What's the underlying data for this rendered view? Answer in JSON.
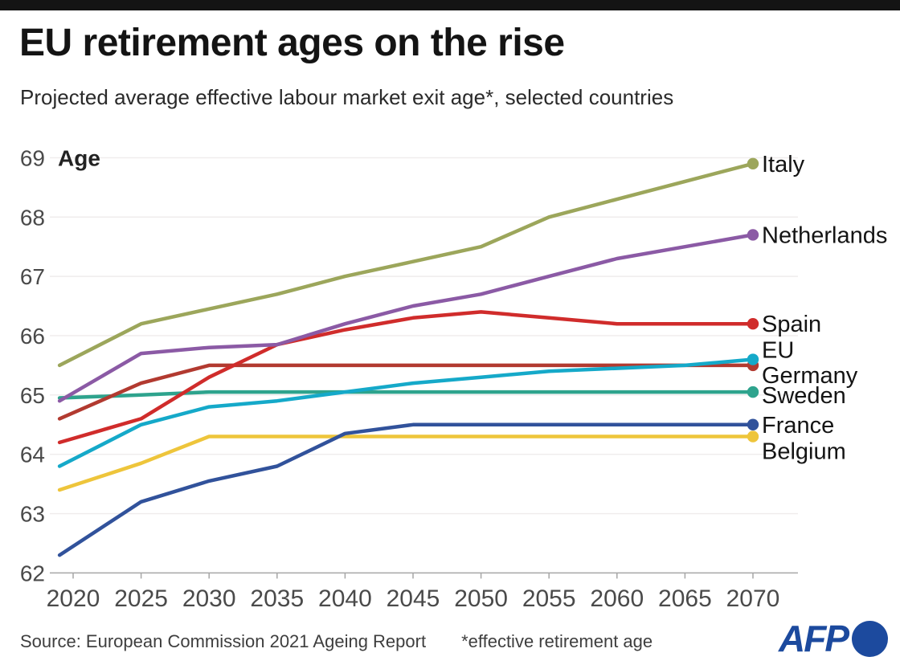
{
  "header": {
    "title": "EU retirement ages on the rise",
    "subtitle": "Projected average effective labour market exit age*, selected countries"
  },
  "chart_data": {
    "type": "line",
    "title": "EU retirement ages on the rise",
    "xlabel": "",
    "ylabel": "Age",
    "x": [
      2019,
      2025,
      2030,
      2035,
      2040,
      2045,
      2050,
      2055,
      2060,
      2065,
      2070
    ],
    "xticks": [
      2020,
      2025,
      2030,
      2035,
      2040,
      2045,
      2050,
      2055,
      2060,
      2065,
      2070
    ],
    "yticks": [
      62,
      63,
      64,
      65,
      66,
      67,
      68,
      69
    ],
    "ylim": [
      62,
      69
    ],
    "xlim": [
      2019,
      2070
    ],
    "grid": true,
    "legend_position": "end-of-line-labels-right",
    "series": [
      {
        "name": "Sweden",
        "color": "#2EA38D",
        "label_dy": 4,
        "values": [
          64.95,
          65.0,
          65.05,
          65.05,
          65.05,
          65.05,
          65.05,
          65.05,
          65.05,
          65.05,
          65.05
        ]
      },
      {
        "name": "Belgium",
        "color": "#EEC53B",
        "label_dy": 18,
        "values": [
          63.4,
          63.85,
          64.3,
          64.3,
          64.3,
          64.3,
          64.3,
          64.3,
          64.3,
          64.3,
          64.3
        ]
      },
      {
        "name": "Germany",
        "color": "#B23A30",
        "label_dy": 12,
        "values": [
          64.6,
          65.2,
          65.5,
          65.5,
          65.5,
          65.5,
          65.5,
          65.5,
          65.5,
          65.5,
          65.5
        ]
      },
      {
        "name": "France",
        "color": "#31529B",
        "label_dy": 0,
        "values": [
          62.3,
          63.2,
          63.55,
          63.8,
          64.35,
          64.5,
          64.5,
          64.5,
          64.5,
          64.5,
          64.5
        ]
      },
      {
        "name": "EU",
        "color": "#15A9C9",
        "label_dy": -12,
        "values": [
          63.8,
          64.5,
          64.8,
          64.9,
          65.05,
          65.2,
          65.3,
          65.4,
          65.45,
          65.5,
          65.6
        ]
      },
      {
        "name": "Spain",
        "color": "#D02C2B",
        "label_dy": 0,
        "values": [
          64.2,
          64.6,
          65.3,
          65.85,
          66.1,
          66.3,
          66.4,
          66.3,
          66.2,
          66.2,
          66.2
        ]
      },
      {
        "name": "Netherlands",
        "color": "#8B5AA5",
        "label_dy": 0,
        "values": [
          64.9,
          65.7,
          65.8,
          65.85,
          66.2,
          66.5,
          66.7,
          67.0,
          67.3,
          67.5,
          67.7
        ]
      },
      {
        "name": "Italy",
        "color": "#9CA65B",
        "label_dy": 0,
        "values": [
          65.5,
          66.2,
          66.45,
          66.7,
          67.0,
          67.25,
          67.5,
          68.0,
          68.3,
          68.6,
          68.9
        ]
      }
    ]
  },
  "footer": {
    "source": "Source: European Commission 2021 Ageing Report",
    "footnote": "*effective retirement age",
    "logo_text": "AFP"
  },
  "colors": {
    "accent_bar": "#141414",
    "grid": "#EFECEC",
    "axis": "#A6A6A6",
    "tick_label": "#4A4A4A",
    "series_label": "#141414",
    "afp_blue": "#1C4A9E"
  }
}
